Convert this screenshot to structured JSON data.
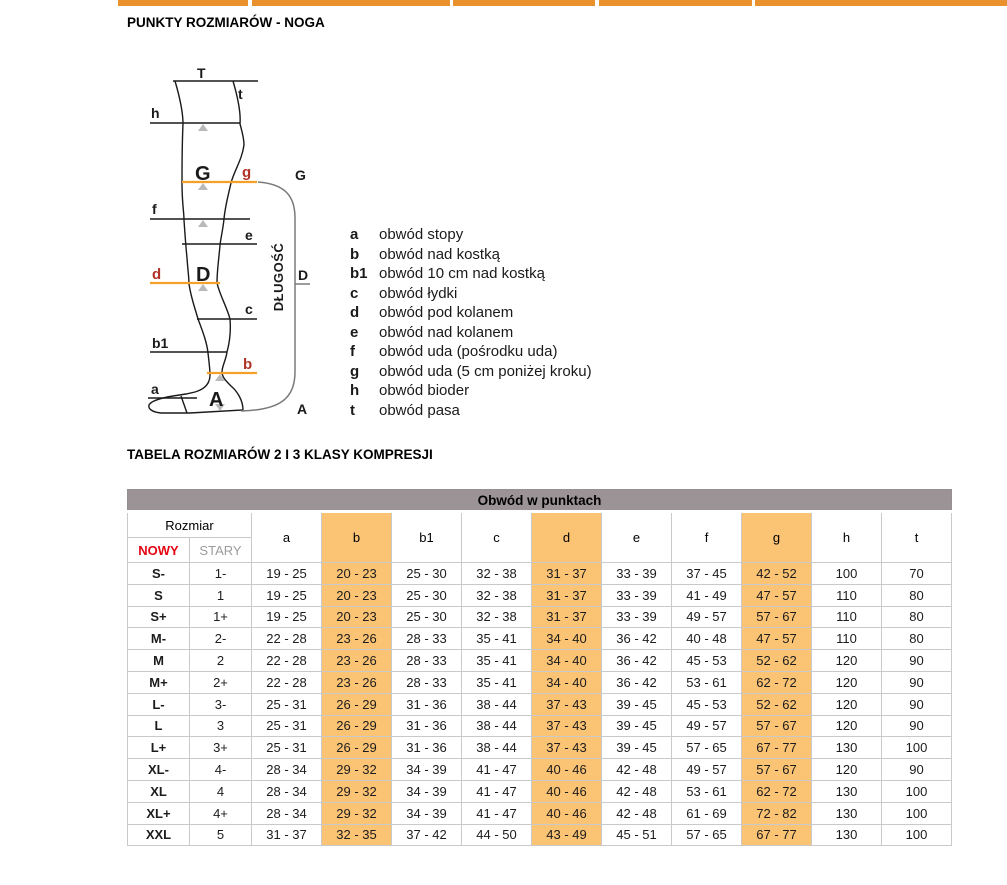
{
  "page": {
    "title": "PUNKTY ROZMIARÓW - NOGA",
    "table_title": "TABELA ROZMIARÓW 2 I 3 KLASY KOMPRESJI"
  },
  "nav": {
    "bar_color": "#E8912D",
    "segment_count": 5
  },
  "diagram": {
    "length_label": "DŁUGOŚĆ",
    "points": {
      "T": "T",
      "t": "t",
      "h": "h",
      "G": "G",
      "g": "g",
      "f": "f",
      "e": "e",
      "D": "D",
      "d": "d",
      "c": "c",
      "b1": "b1",
      "b": "b",
      "a": "a",
      "A": "A"
    },
    "side": {
      "g": "G",
      "d": "D",
      "a": "A"
    },
    "colors": {
      "highlight_line": "#F5A028",
      "highlight_letter": "#B03328",
      "outline": "#1a1a1a",
      "bracket": "#7a7a7a",
      "marker": "#b9b9b9"
    },
    "legend": [
      {
        "letter": "a",
        "text": "obwód stopy"
      },
      {
        "letter": "b",
        "text": "obwód nad kostką"
      },
      {
        "letter": "b1",
        "text": "obwód 10 cm nad kostką"
      },
      {
        "letter": "c",
        "text": "obwód łydki"
      },
      {
        "letter": "d",
        "text": "obwód pod kolanem"
      },
      {
        "letter": "e",
        "text": "obwód nad kolanem"
      },
      {
        "letter": "f",
        "text": "obwód uda (pośrodku uda)"
      },
      {
        "letter": "g",
        "text": "obwód uda (5 cm poniżej kroku)"
      },
      {
        "letter": "h",
        "text": "obwód bioder"
      },
      {
        "letter": "t",
        "text": "obwód pasa"
      }
    ]
  },
  "table": {
    "header": "Obwód w punktach",
    "size_header": "Rozmiar",
    "size_new": "NOWY",
    "size_old": "STARY",
    "point_columns": [
      "a",
      "b",
      "b1",
      "c",
      "d",
      "e",
      "f",
      "g",
      "h",
      "t"
    ],
    "highlighted_columns": [
      "b",
      "d",
      "g"
    ],
    "colors": {
      "header_bg": "#9C9396",
      "highlight_bg": "#FBC374",
      "new_label_color": "#E30613",
      "old_label_color": "#9B9B9B",
      "border": "#C9C9C9"
    },
    "rows": [
      {
        "new": "S-",
        "old": "1-",
        "values": [
          "19 - 25",
          "20 - 23",
          "25 - 30",
          "32 - 38",
          "31 - 37",
          "33 - 39",
          "37 - 45",
          "42 - 52",
          "100",
          "70"
        ]
      },
      {
        "new": "S",
        "old": "1",
        "values": [
          "19 - 25",
          "20 - 23",
          "25 - 30",
          "32 - 38",
          "31 - 37",
          "33 - 39",
          "41 - 49",
          "47 - 57",
          "110",
          "80"
        ]
      },
      {
        "new": "S+",
        "old": "1+",
        "values": [
          "19 - 25",
          "20 - 23",
          "25 - 30",
          "32 - 38",
          "31 - 37",
          "33 - 39",
          "49 - 57",
          "57 - 67",
          "110",
          "80"
        ]
      },
      {
        "new": "M-",
        "old": "2-",
        "values": [
          "22 - 28",
          "23 - 26",
          "28 - 33",
          "35 - 41",
          "34 - 40",
          "36 - 42",
          "40 - 48",
          "47 - 57",
          "110",
          "80"
        ]
      },
      {
        "new": "M",
        "old": "2",
        "values": [
          "22 - 28",
          "23 - 26",
          "28 - 33",
          "35 - 41",
          "34 - 40",
          "36 - 42",
          "45 - 53",
          "52 - 62",
          "120",
          "90"
        ]
      },
      {
        "new": "M+",
        "old": "2+",
        "values": [
          "22 - 28",
          "23 - 26",
          "28 - 33",
          "35 - 41",
          "34 - 40",
          "36 - 42",
          "53 - 61",
          "62 - 72",
          "120",
          "90"
        ]
      },
      {
        "new": "L-",
        "old": "3-",
        "values": [
          "25 - 31",
          "26 - 29",
          "31 - 36",
          "38 - 44",
          "37 - 43",
          "39 - 45",
          "45 - 53",
          "52 - 62",
          "120",
          "90"
        ]
      },
      {
        "new": "L",
        "old": "3",
        "values": [
          "25 - 31",
          "26 - 29",
          "31 - 36",
          "38 - 44",
          "37 - 43",
          "39 - 45",
          "49 - 57",
          "57 - 67",
          "120",
          "90"
        ]
      },
      {
        "new": "L+",
        "old": "3+",
        "values": [
          "25 - 31",
          "26 - 29",
          "31 - 36",
          "38 - 44",
          "37 - 43",
          "39 - 45",
          "57 - 65",
          "67 - 77",
          "130",
          "100"
        ]
      },
      {
        "new": "XL-",
        "old": "4-",
        "values": [
          "28 - 34",
          "29 - 32",
          "34 - 39",
          "41 - 47",
          "40 - 46",
          "42 - 48",
          "49 - 57",
          "57 - 67",
          "120",
          "90"
        ]
      },
      {
        "new": "XL",
        "old": "4",
        "values": [
          "28 - 34",
          "29 - 32",
          "34 - 39",
          "41 - 47",
          "40 - 46",
          "42 - 48",
          "53 - 61",
          "62 - 72",
          "130",
          "100"
        ]
      },
      {
        "new": "XL+",
        "old": "4+",
        "values": [
          "28 - 34",
          "29 - 32",
          "34 - 39",
          "41 - 47",
          "40 - 46",
          "42 - 48",
          "61 - 69",
          "72 - 82",
          "130",
          "100"
        ]
      },
      {
        "new": "XXL",
        "old": "5",
        "values": [
          "31 - 37",
          "32 - 35",
          "37 - 42",
          "44 - 50",
          "43 - 49",
          "45 - 51",
          "57 - 65",
          "67 - 77",
          "130",
          "100"
        ]
      }
    ]
  }
}
